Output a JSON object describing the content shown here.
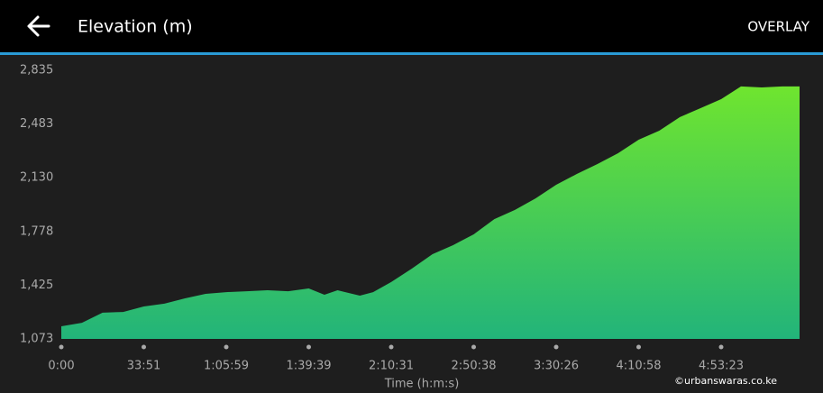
{
  "header": {
    "title": "Elevation (m)",
    "action": "OVERLAY"
  },
  "chart_data": {
    "type": "area",
    "x_label": "Time (h:m:s)",
    "x": [
      0,
      508,
      1016,
      1523,
      2031,
      2513,
      2995,
      3477,
      3959,
      4464,
      4969,
      5474,
      5979,
      6331,
      6627,
      7127,
      7424,
      7831,
      8433,
      9035,
      9636,
      10238,
      10835,
      11432,
      12029,
      12626,
      13234,
      13842,
      14450,
      15058,
      15694,
      16331,
      16967,
      17603,
      18215,
      18855,
      19494,
      20023
    ],
    "values": [
      1156,
      1179,
      1245,
      1250,
      1286,
      1304,
      1339,
      1369,
      1380,
      1386,
      1392,
      1386,
      1404,
      1363,
      1392,
      1357,
      1380,
      1446,
      1534,
      1629,
      1688,
      1759,
      1859,
      1919,
      1995,
      2084,
      2155,
      2220,
      2291,
      2380,
      2439,
      2528,
      2587,
      2646,
      2729,
      2723,
      2729,
      2729
    ],
    "color_top": "#74e82a",
    "color_bottom": "#22b47a",
    "xlim": [
      0,
      20023
    ],
    "xticks": [
      {
        "value": 0,
        "label": "0:00"
      },
      {
        "value": 2031,
        "label": "33:51"
      },
      {
        "value": 3959,
        "label": "1:05:59"
      },
      {
        "value": 5979,
        "label": "1:39:39"
      },
      {
        "value": 7831,
        "label": "2:10:31"
      },
      {
        "value": 10238,
        "label": "2:50:38"
      },
      {
        "value": 12626,
        "label": "3:30:26"
      },
      {
        "value": 15058,
        "label": "4:10:58"
      },
      {
        "value": 17603,
        "label": "4:53:23"
      }
    ],
    "ylim": [
      1073,
      2835
    ],
    "yticks": [
      {
        "value": 1073,
        "label": "1,073"
      },
      {
        "value": 1425,
        "label": "1,425"
      },
      {
        "value": 1778,
        "label": "1,778"
      },
      {
        "value": 2130,
        "label": "2,130"
      },
      {
        "value": 2483,
        "label": "2,483"
      },
      {
        "value": 2835,
        "label": "2,835"
      }
    ],
    "grid": false
  },
  "watermark": "©urbanswaras.co.ke"
}
